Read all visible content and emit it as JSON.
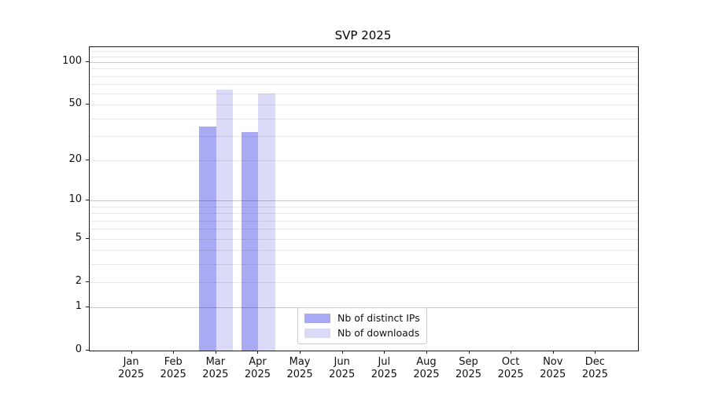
{
  "title": "SVP 2025",
  "chart_data": {
    "type": "bar",
    "title": "SVP 2025",
    "categories": [
      "Jan\n2025",
      "Feb\n2025",
      "Mar\n2025",
      "Apr\n2025",
      "May\n2025",
      "Jun\n2025",
      "Jul\n2025",
      "Aug\n2025",
      "Sep\n2025",
      "Oct\n2025",
      "Nov\n2025",
      "Dec\n2025"
    ],
    "series": [
      {
        "name": "Nb of distinct IPs",
        "color": "#a9a9f4",
        "values": [
          0,
          0,
          35,
          32,
          0,
          0,
          0,
          0,
          0,
          0,
          0,
          0
        ]
      },
      {
        "name": "Nb of downloads",
        "color": "#dbdbf8",
        "values": [
          0,
          0,
          64,
          60,
          0,
          0,
          0,
          0,
          0,
          0,
          0,
          0
        ]
      }
    ],
    "y_scale": "log10(1+y)",
    "ylim": [
      0,
      127.3
    ],
    "y_ticks": [
      0,
      1,
      2,
      5,
      10,
      20,
      50,
      100
    ],
    "y_major_gridlines": [
      1,
      10,
      100
    ],
    "y_minor_gridlines": [
      2,
      3,
      4,
      5,
      6,
      7,
      8,
      9,
      20,
      30,
      40,
      50,
      60,
      70,
      80,
      90,
      110,
      120
    ],
    "xlabel": "",
    "ylabel": "",
    "grid": "on",
    "legend_position": "lower center"
  },
  "legend": {
    "items": [
      {
        "label": "Nb of distinct IPs"
      },
      {
        "label": "Nb of downloads"
      }
    ]
  }
}
